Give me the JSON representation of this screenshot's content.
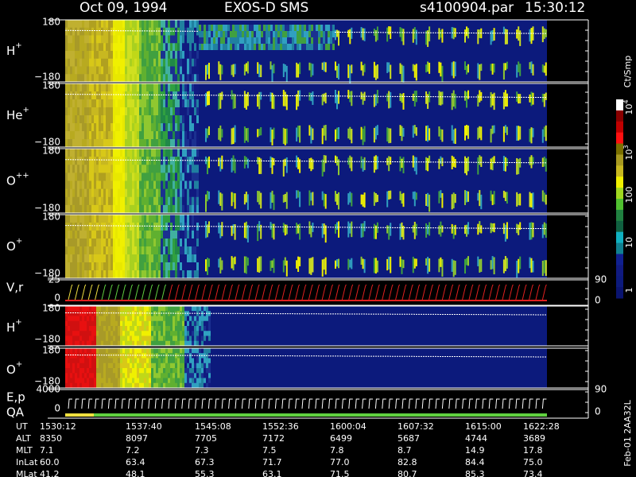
{
  "header": {
    "date": "Oct 09, 1994",
    "instrument": "EXOS-D SMS",
    "file": "s4100904.par",
    "time": "15:30:12"
  },
  "panels": [
    {
      "label": "H",
      "sup": "+",
      "top": "180",
      "bottom": "−180"
    },
    {
      "label": "He",
      "sup": "+",
      "top": "180",
      "bottom": "−180"
    },
    {
      "label": "O",
      "sup": "++",
      "top": "180",
      "bottom": "−180"
    },
    {
      "label": "O",
      "sup": "+",
      "top": "180",
      "bottom": "−180"
    }
  ],
  "vr": {
    "label": "V,r",
    "top": "25",
    "bottom": "0",
    "right_top": "90",
    "right_bottom": "0"
  },
  "lower_panels": [
    {
      "label": "H",
      "sup": "+",
      "top": "180",
      "bottom": "−180"
    },
    {
      "label": "O",
      "sup": "+",
      "top": "180",
      "bottom": "−180"
    }
  ],
  "ep": {
    "label": "E,p",
    "label2": "QA",
    "top": "4000",
    "bottom": "0",
    "right_top": "90",
    "right_bottom": "0"
  },
  "colorbar": {
    "unit": "Ct/Smp",
    "ticks": [
      {
        "base": "10",
        "exp": "4"
      },
      {
        "base": "10",
        "exp": "3"
      },
      "100",
      "10",
      "1"
    ]
  },
  "table": {
    "rows": [
      [
        "UT",
        "1530:12",
        "1537:40",
        "1545:08",
        "1552:36",
        "1600:04",
        "1607:32",
        "1615:00",
        "1622:28"
      ],
      [
        "ALT",
        "8350",
        "8097",
        "7705",
        "7172",
        "6499",
        "5687",
        "4744",
        "3689"
      ],
      [
        "MLT",
        "7.1",
        "7.2",
        "7.3",
        "7.5",
        "7.8",
        "8.7",
        "14.9",
        "17.8"
      ],
      [
        "InLat",
        "60.0",
        "63.4",
        "67.3",
        "71.7",
        "77.0",
        "82.8",
        "84.4",
        "75.0"
      ],
      [
        "MLat",
        "41.2",
        "48.1",
        "55.3",
        "63.1",
        "71.5",
        "80.7",
        "85.3",
        "73.4"
      ]
    ]
  },
  "footer": "Feb-01 2AA32L"
}
